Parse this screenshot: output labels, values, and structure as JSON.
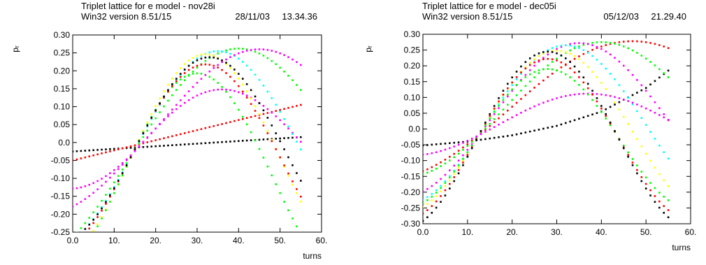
{
  "chart_data": [
    {
      "type": "scatter",
      "title": "Triplet lattice for e model - nov28i",
      "subtitle": "Win32 version 8.51/15",
      "date": "28/11/03",
      "time": "13.34.36",
      "xlabel": "turns",
      "ylabel": "pᵣ",
      "xlim": [
        0,
        60
      ],
      "ylim": [
        -0.25,
        0.3
      ],
      "xticks": [
        "0.0",
        "10.",
        "20.",
        "30.",
        "40.",
        "50.",
        "60."
      ],
      "yticks": [
        "-0.25",
        "-0.20",
        "-0.15",
        "-0.10",
        "-0.05",
        "0.0",
        "0.05",
        "0.10",
        "0.15",
        "0.20",
        "0.25",
        "0.30"
      ],
      "grid": false,
      "series": [
        {
          "color": "#000000",
          "type": "line",
          "x": [
            0,
            55
          ],
          "y": [
            -0.025,
            0.015
          ]
        },
        {
          "color": "#ff0000",
          "type": "line",
          "x": [
            0,
            55
          ],
          "y": [
            -0.05,
            0.105
          ]
        },
        {
          "color": "#00ff00",
          "type": "sine",
          "x0": 14.5,
          "y0": -0.03,
          "center": 40,
          "amp": 0.262,
          "halfwidth": 26,
          "xend": 55
        },
        {
          "color": "#ff00ff",
          "type": "sine",
          "x0": 14.5,
          "y0": -0.03,
          "center": 36,
          "amp": 0.148,
          "halfwidth": 21,
          "xend": 55
        },
        {
          "color": "#00ffff",
          "type": "sine",
          "x0": 14.5,
          "y0": -0.03,
          "center": 35,
          "amp": 0.255,
          "halfwidth": 20,
          "xend": 55
        },
        {
          "color": "#ffff00",
          "type": "sine",
          "x0": 14.5,
          "y0": -0.03,
          "center": 32,
          "amp": 0.246,
          "halfwidth": 18,
          "xend": 55
        },
        {
          "color": "#00ff00",
          "type": "sine",
          "x0": 14.5,
          "y0": -0.03,
          "center": 30,
          "amp": 0.193,
          "halfwidth": 18,
          "xend": 55
        },
        {
          "color": "#ff0000",
          "type": "sine",
          "x0": 14.5,
          "y0": -0.03,
          "center": 32,
          "amp": 0.218,
          "halfwidth": 18,
          "xend": 55
        },
        {
          "color": "#000000",
          "type": "sine",
          "x0": 14.5,
          "y0": -0.03,
          "center": 33,
          "amp": 0.238,
          "halfwidth": 18,
          "xend": 55
        },
        {
          "color": "#ff00ff",
          "type": "sine",
          "x0": 14.5,
          "y0": -0.03,
          "center": 45,
          "amp": 0.26,
          "halfwidth": 23,
          "xend": 55
        }
      ]
    },
    {
      "type": "scatter",
      "title": "Triplet lattice for e model - dec05i",
      "subtitle": "Win32 version 8.51/15",
      "date": "05/12/03",
      "time": "21.29.40",
      "xlabel": "turns",
      "ylabel": "pᵣ",
      "xlim": [
        0,
        60
      ],
      "ylim": [
        -0.3,
        0.3
      ],
      "xticks": [
        "0.0",
        "10.",
        "20.",
        "30.",
        "40.",
        "50.",
        "60."
      ],
      "yticks": [
        "-0.30",
        "-0.25",
        "-0.20",
        "-0.15",
        "-0.10",
        "-0.05",
        "0.0",
        "0.05",
        "0.10",
        "0.15",
        "0.20",
        "0.25",
        "0.30"
      ],
      "grid": false,
      "series": [
        {
          "color": "#000000",
          "type": "curve",
          "x": [
            0,
            10,
            20,
            30,
            40,
            50,
            55
          ],
          "y": [
            -0.052,
            -0.04,
            -0.02,
            0.01,
            0.055,
            0.13,
            0.185
          ]
        },
        {
          "color": "#ff0000",
          "type": "sine",
          "x0": 12.5,
          "y0": -0.02,
          "center": 47,
          "amp": 0.278,
          "halfwidth": 28,
          "xend": 55
        },
        {
          "color": "#00ff00",
          "type": "sine",
          "x0": 12.5,
          "y0": -0.02,
          "center": 40,
          "amp": 0.275,
          "halfwidth": 22,
          "xend": 55
        },
        {
          "color": "#ff00ff",
          "type": "sine",
          "x0": 12.5,
          "y0": -0.02,
          "center": 35,
          "amp": 0.272,
          "halfwidth": 20,
          "xend": 55
        },
        {
          "color": "#00ffff",
          "type": "sine",
          "x0": 12.5,
          "y0": -0.02,
          "center": 32,
          "amp": 0.265,
          "halfwidth": 18,
          "xend": 55
        },
        {
          "color": "#ffff00",
          "type": "sine",
          "x0": 12.5,
          "y0": -0.02,
          "center": 30,
          "amp": 0.248,
          "halfwidth": 17,
          "xend": 55
        },
        {
          "color": "#ff00ff",
          "type": "sine",
          "x0": 12.5,
          "y0": -0.02,
          "center": 37,
          "amp": 0.112,
          "halfwidth": 20,
          "xend": 55
        },
        {
          "color": "#00ff00",
          "type": "sine",
          "x0": 12.5,
          "y0": -0.02,
          "center": 28,
          "amp": 0.19,
          "halfwidth": 16,
          "xend": 55
        },
        {
          "color": "#ff0000",
          "type": "sine",
          "x0": 12.5,
          "y0": -0.02,
          "center": 28,
          "amp": 0.222,
          "halfwidth": 16,
          "xend": 55
        },
        {
          "color": "#000000",
          "type": "sine",
          "x0": 12.5,
          "y0": -0.02,
          "center": 28,
          "amp": 0.245,
          "halfwidth": 16,
          "xend": 55
        }
      ]
    }
  ]
}
